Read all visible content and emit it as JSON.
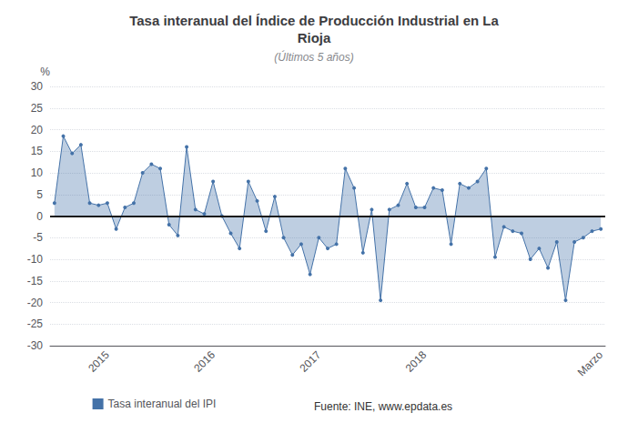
{
  "chart_data": {
    "type": "area",
    "title": "Tasa interanual del Índice de Producción Industrial en La\nRioja",
    "subtitle": "(Últimos 5 años)",
    "y_label": "%",
    "annotations": [
      "Fuente: INE, www.epdata.es"
    ],
    "categories": [
      null,
      null,
      null,
      null,
      null,
      null,
      "2015",
      null,
      null,
      null,
      null,
      null,
      null,
      null,
      null,
      null,
      null,
      null,
      "2016",
      null,
      null,
      null,
      null,
      null,
      null,
      null,
      null,
      null,
      null,
      null,
      "2017",
      null,
      null,
      null,
      null,
      null,
      null,
      null,
      null,
      null,
      null,
      null,
      "2018",
      null,
      null,
      null,
      null,
      null,
      null,
      null,
      null,
      null,
      null,
      null,
      null,
      null,
      null,
      null,
      null,
      null,
      null,
      null,
      "Marzo"
    ],
    "series": [
      {
        "name": "Tasa interanual del IPI",
        "color": "#4472a8",
        "values": [
          3.0,
          18.5,
          14.5,
          16.5,
          3.0,
          2.5,
          3.0,
          -3.0,
          2.0,
          3.0,
          10.0,
          12.0,
          11.0,
          -2.0,
          -4.5,
          16.0,
          1.5,
          0.5,
          8.0,
          0.0,
          -4.0,
          -7.5,
          8.0,
          3.5,
          -3.5,
          4.5,
          -5.0,
          -9.0,
          -6.5,
          -13.5,
          -5.0,
          -7.5,
          -6.5,
          11.0,
          6.5,
          -8.5,
          1.5,
          -19.5,
          1.5,
          2.5,
          7.5,
          2.0,
          2.0,
          6.5,
          6.0,
          -6.5,
          7.5,
          6.5,
          8.0,
          11.0,
          -9.5,
          -2.5,
          -3.5,
          -4.0,
          -10.0,
          -7.5,
          -12.0,
          -6.0,
          -19.5,
          -6.0,
          -5.0,
          -3.5,
          -3.0
        ]
      }
    ],
    "ylim": [
      -30,
      30
    ],
    "yticks": [
      -30,
      -25,
      -20,
      -15,
      -10,
      -5,
      0,
      5,
      10,
      15,
      20,
      25,
      30
    ],
    "grid": true,
    "legend": "bottom"
  }
}
